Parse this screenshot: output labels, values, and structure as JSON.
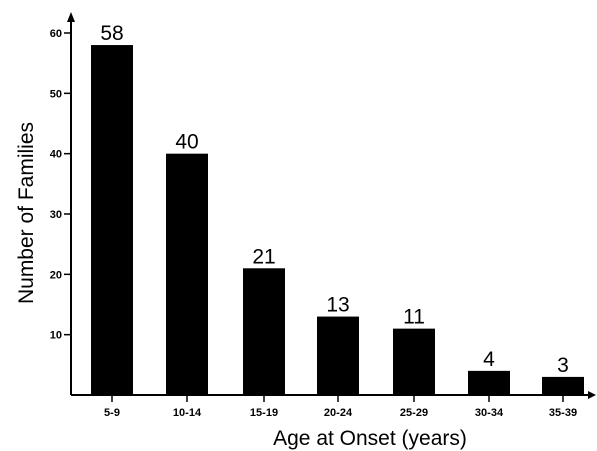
{
  "chart_data": {
    "type": "bar",
    "title": "",
    "xlabel": "Age at Onset (years)",
    "ylabel": "Number of Families",
    "categories": [
      "5-9",
      "10-14",
      "15-19",
      "20-24",
      "25-29",
      "30-34",
      "35-39"
    ],
    "values": [
      58,
      40,
      21,
      13,
      11,
      4,
      3
    ],
    "data_labels": [
      "58",
      "40",
      "21",
      "13",
      "11",
      "4",
      "3"
    ],
    "y_ticks": [
      "10",
      "20",
      "30",
      "40",
      "50",
      "60"
    ],
    "ylim": [
      0,
      60
    ],
    "grid": false,
    "legend": "none",
    "bar_color": "#000000"
  }
}
